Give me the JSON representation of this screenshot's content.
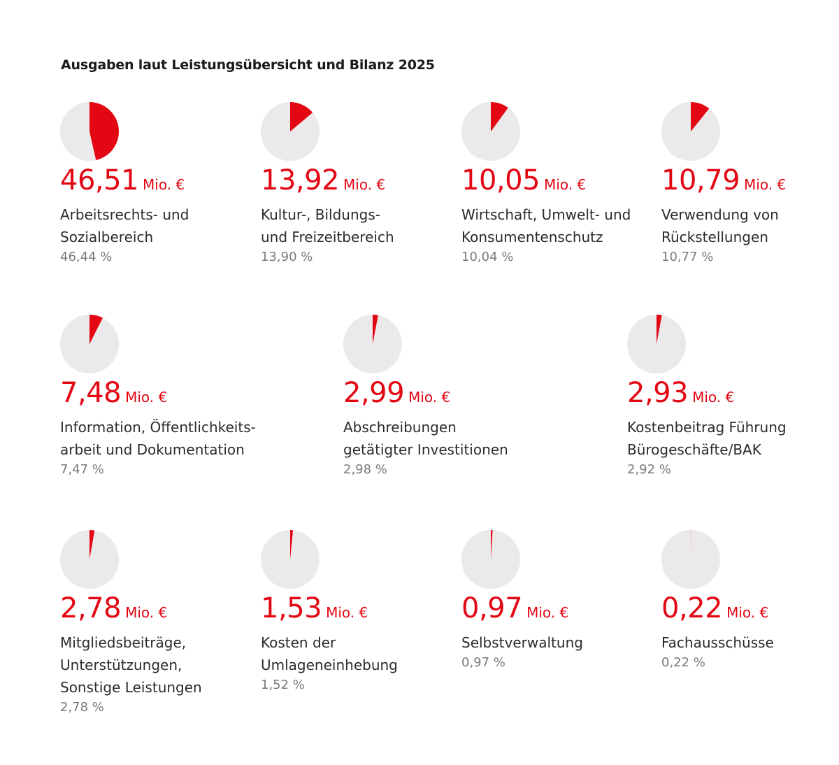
{
  "title": "Ausgaben laut Leistungsübersicht und Bilanz 2025",
  "colors": {
    "accent": "#e30613",
    "pie_bg": "#ebe9ea",
    "text": "#2b2b2b",
    "muted": "#7a7a7a"
  },
  "items": [
    {
      "amount": "46,51",
      "unit": "Mio. €",
      "lines": [
        "Arbeitsrechts- und",
        "Sozialbereich"
      ],
      "percent_label": "46,44 %",
      "percent": 46.44
    },
    {
      "amount": "13,92",
      "unit": "Mio. €",
      "lines": [
        "Kultur-, Bildungs-",
        "und Freizeitbereich"
      ],
      "percent_label": "13,90 %",
      "percent": 13.9
    },
    {
      "amount": "10,05",
      "unit": "Mio. €",
      "lines": [
        "Wirtschaft, Umwelt- und",
        "Konsumentenschutz"
      ],
      "percent_label": "10,04 %",
      "percent": 10.04
    },
    {
      "amount": "10,79",
      "unit": "Mio. €",
      "lines": [
        "Verwendung von",
        "Rückstellungen"
      ],
      "percent_label": "10,77 %",
      "percent": 10.77
    },
    {
      "amount": "7,48",
      "unit": "Mio. €",
      "lines": [
        "Information, Öffentlichkeits-",
        "arbeit und Dokumentation"
      ],
      "percent_label": "7,47 %",
      "percent": 7.47
    },
    {
      "amount": "2,99",
      "unit": "Mio. €",
      "lines": [
        "Abschreibungen",
        "getätigter Investitionen"
      ],
      "percent_label": "2,98 %",
      "percent": 2.98
    },
    {
      "amount": "2,93",
      "unit": "Mio. €",
      "lines": [
        "Kostenbeitrag Führung",
        "Bürogeschäfte/BAK"
      ],
      "percent_label": "2,92 %",
      "percent": 2.92
    },
    {
      "amount": "2,78",
      "unit": "Mio. €",
      "lines": [
        "Mitgliedsbeiträge,",
        "Unterstützungen,",
        "Sonstige Leistungen"
      ],
      "percent_label": "2,78 %",
      "percent": 2.78
    },
    {
      "amount": "1,53",
      "unit": "Mio. €",
      "lines": [
        "Kosten der",
        "Umlageneinhebung"
      ],
      "percent_label": "1,52 %",
      "percent": 1.52
    },
    {
      "amount": "0,97",
      "unit": "Mio. €",
      "lines": [
        "Selbstverwaltung"
      ],
      "percent_label": "0,97 %",
      "percent": 0.97
    },
    {
      "amount": "0,22",
      "unit": "Mio. €",
      "lines": [
        "Fachausschüsse"
      ],
      "percent_label": "0,22 %",
      "percent": 0.22
    }
  ],
  "chart_data": {
    "type": "pie",
    "title": "Ausgaben laut Leistungsübersicht und Bilanz 2025",
    "unit": "Mio. €",
    "categories": [
      "Arbeitsrechts- und Sozialbereich",
      "Kultur-, Bildungs- und Freizeitbereich",
      "Wirtschaft, Umwelt- und Konsumentenschutz",
      "Verwendung von Rückstellungen",
      "Information, Öffentlichkeitsarbeit und Dokumentation",
      "Abschreibungen getätigter Investitionen",
      "Kostenbeitrag Führung Bürogeschäfte/BAK",
      "Mitgliedsbeiträge, Unterstützungen, Sonstige Leistungen",
      "Kosten der Umlageneinhebung",
      "Selbstverwaltung",
      "Fachausschüsse"
    ],
    "values": [
      46.51,
      13.92,
      10.05,
      10.79,
      7.48,
      2.99,
      2.93,
      2.78,
      1.53,
      0.97,
      0.22
    ],
    "percentages": [
      46.44,
      13.9,
      10.04,
      10.77,
      7.47,
      2.98,
      2.92,
      2.78,
      1.52,
      0.97,
      0.22
    ]
  }
}
